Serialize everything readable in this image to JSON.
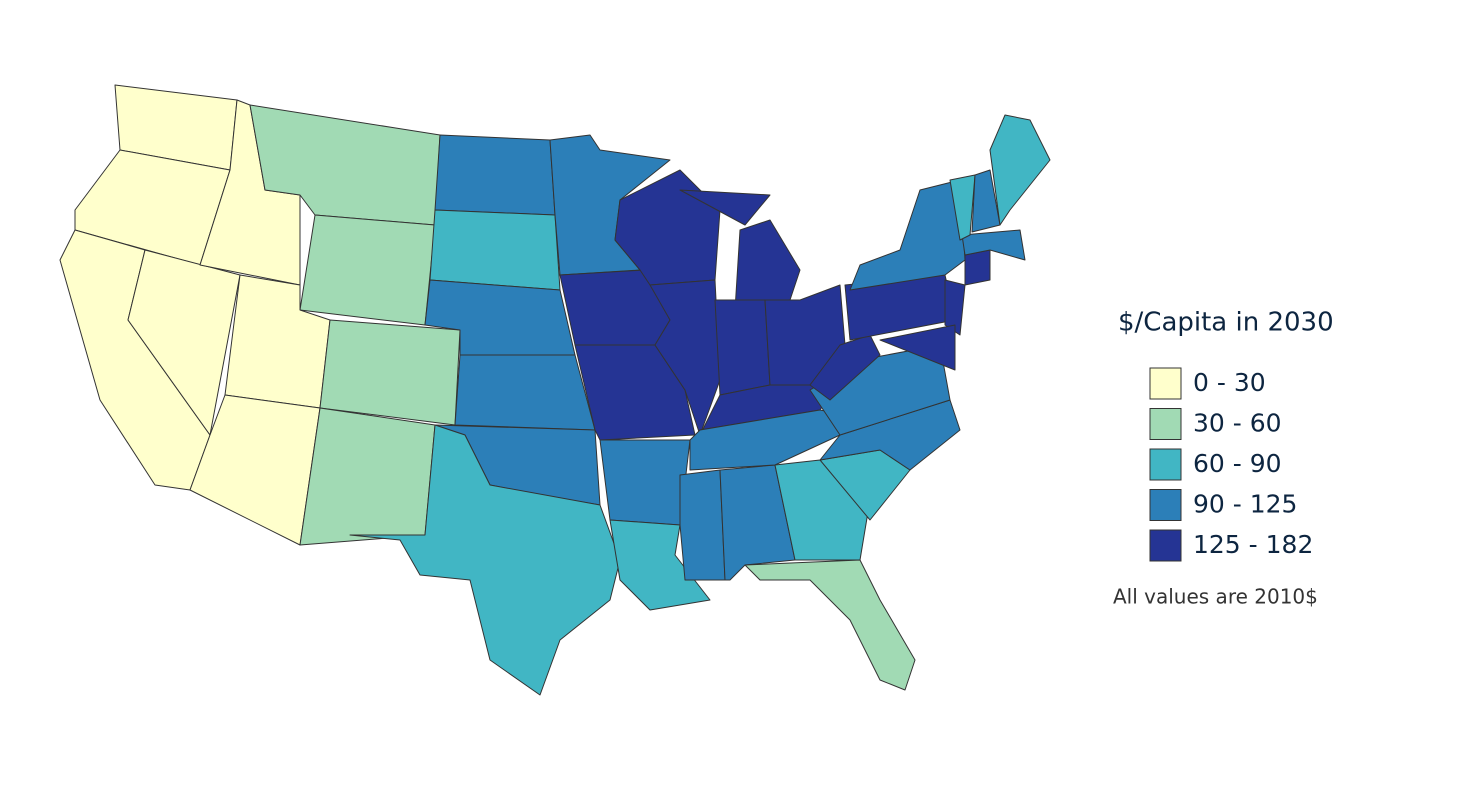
{
  "legend": {
    "title": "$/Capita in 2030",
    "items": [
      {
        "label": "0 - 30",
        "color": "#ffffcc"
      },
      {
        "label": "30 - 60",
        "color": "#a1dab4"
      },
      {
        "label": "60 - 90",
        "color": "#41b6c4"
      },
      {
        "label": "90 - 125",
        "color": "#2c7fb8"
      },
      {
        "label": "125 - 182",
        "color": "#253494"
      }
    ]
  },
  "note": "All values are 2010$"
}
